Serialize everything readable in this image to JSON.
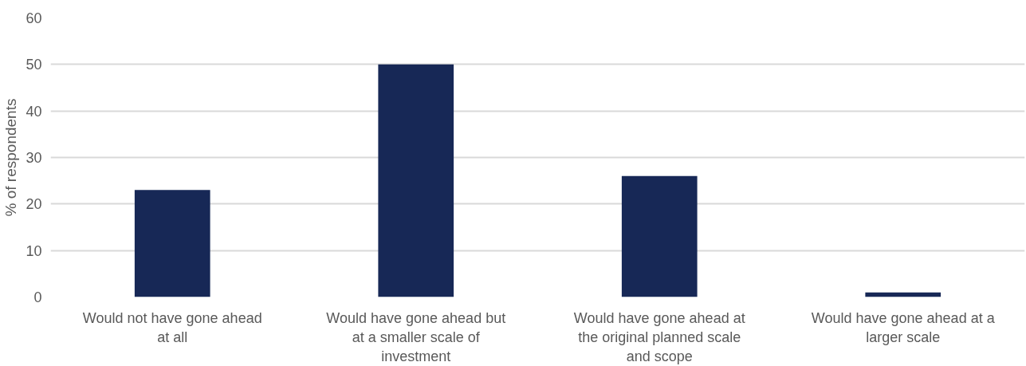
{
  "chart_data": {
    "type": "bar",
    "ylabel": "% of respondents",
    "categories": [
      "Would not have gone ahead at all",
      "Would have gone ahead but at a smaller scale of investment",
      "Would have gone ahead at the original planned scale and scope",
      "Would have gone ahead at a larger scale"
    ],
    "values": [
      23,
      50,
      26,
      1
    ],
    "color": "#172856",
    "ylim": [
      0,
      60
    ],
    "yticks": [
      0,
      10,
      20,
      30,
      40,
      50,
      60
    ],
    "grid": "y"
  }
}
